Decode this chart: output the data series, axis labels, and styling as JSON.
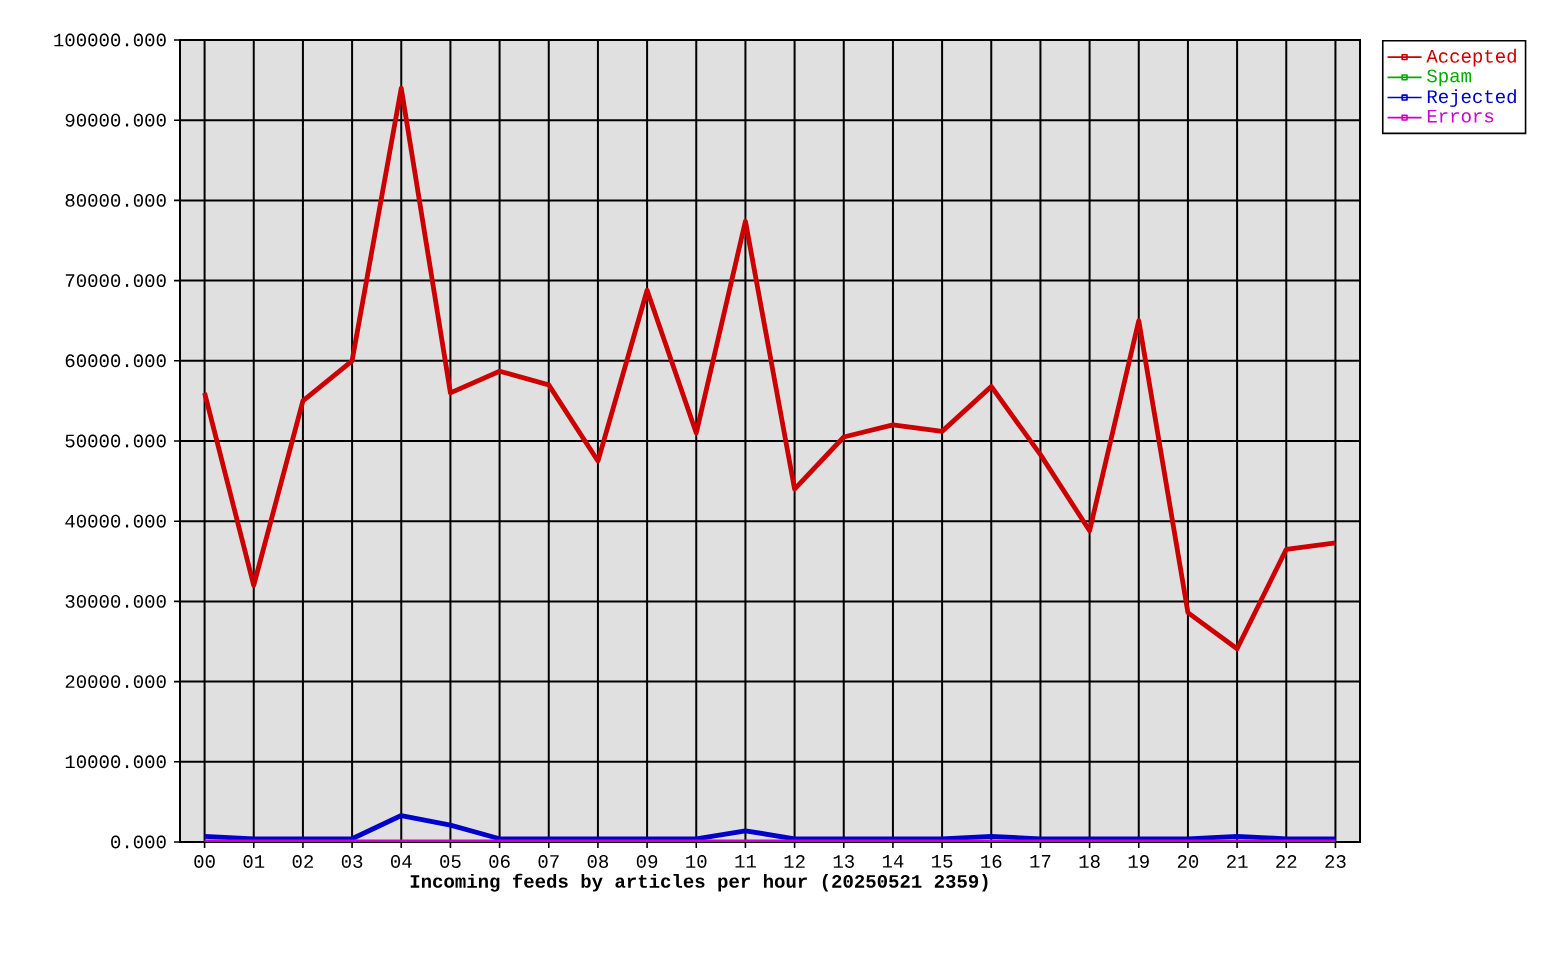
{
  "chart_data": {
    "type": "line",
    "xlabel": "Incoming feeds by articles per hour (20250521 2359)",
    "categories": [
      "00",
      "01",
      "02",
      "03",
      "04",
      "05",
      "06",
      "07",
      "08",
      "09",
      "10",
      "11",
      "12",
      "13",
      "14",
      "15",
      "16",
      "17",
      "18",
      "19",
      "20",
      "21",
      "22",
      "23"
    ],
    "series": [
      {
        "name": "Accepted",
        "color": "#cc0000",
        "values": [
          56000,
          32000,
          55000,
          60000,
          94000,
          56000,
          58700,
          57000,
          47500,
          68800,
          51000,
          77400,
          44000,
          50500,
          52000,
          51200,
          56800,
          48300,
          38800,
          65000,
          28600,
          24100,
          36500,
          37300
        ]
      },
      {
        "name": "Spam",
        "color": "#00aa00",
        "values": [
          null,
          null,
          null,
          null,
          null,
          null,
          null,
          null,
          null,
          null,
          null,
          null,
          null,
          null,
          null,
          null,
          null,
          null,
          null,
          null,
          null,
          null,
          null,
          null
        ]
      },
      {
        "name": "Rejected",
        "color": "#0000cc",
        "values": [
          700,
          400,
          400,
          400,
          3300,
          2100,
          400,
          400,
          400,
          400,
          400,
          1400,
          400,
          400,
          400,
          400,
          700,
          400,
          400,
          400,
          400,
          700,
          400,
          400
        ]
      },
      {
        "name": "Errors",
        "color": "#cc00cc",
        "values": [
          0,
          0,
          0,
          0,
          0,
          0,
          0,
          0,
          0,
          0,
          0,
          0,
          0,
          0,
          0,
          0,
          0,
          0,
          0,
          0,
          0,
          0,
          0,
          0
        ]
      }
    ],
    "ylim": [
      0,
      100000
    ],
    "yticks": [
      {
        "value": 0,
        "label": "0.000"
      },
      {
        "value": 10000,
        "label": "10000.000"
      },
      {
        "value": 20000,
        "label": "20000.000"
      },
      {
        "value": 30000,
        "label": "30000.000"
      },
      {
        "value": 40000,
        "label": "40000.000"
      },
      {
        "value": 50000,
        "label": "50000.000"
      },
      {
        "value": 60000,
        "label": "60000.000"
      },
      {
        "value": 70000,
        "label": "70000.000"
      },
      {
        "value": 80000,
        "label": "80000.000"
      },
      {
        "value": 90000,
        "label": "90000.000"
      },
      {
        "value": 100000,
        "label": "100000.000"
      }
    ],
    "grid": true,
    "legend": "top right"
  }
}
